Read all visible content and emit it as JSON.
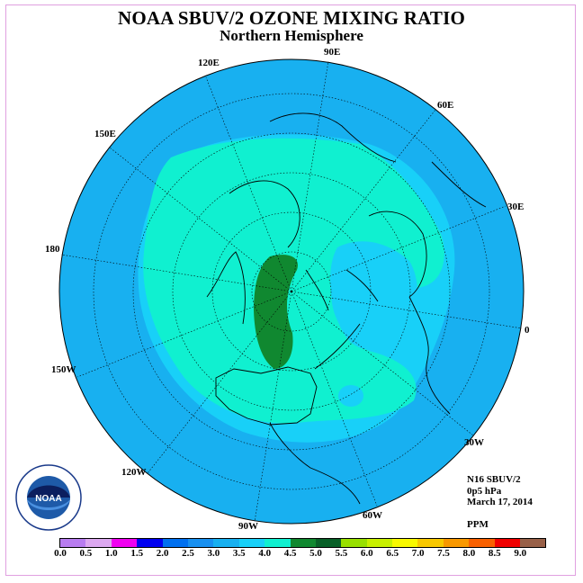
{
  "header": {
    "title": "NOAA SBUV/2 OZONE MIXING RATIO",
    "subtitle": "Northern Hemisphere"
  },
  "map": {
    "projection": "polar-stereographic-north",
    "longitude_labels": [
      "90E",
      "60E",
      "30E",
      "0",
      "30W",
      "60W",
      "90W",
      "120W",
      "150W",
      "180",
      "150E",
      "120E"
    ]
  },
  "info": {
    "instrument": "N16 SBUV/2",
    "pressure_level": "0p5 hPa",
    "date": "March 17, 2014",
    "units": "PPM"
  },
  "colorbar": {
    "colors": [
      "#b87cf0",
      "#dca8f0",
      "#f000f0",
      "#0000f0",
      "#0070f0",
      "#1890f0",
      "#18b0f0",
      "#18d0f8",
      "#10f0d0",
      "#108830",
      "#086028",
      "#98e000",
      "#c8f000",
      "#f8f800",
      "#f8c800",
      "#f89800",
      "#f86000",
      "#f00000",
      "#986048"
    ],
    "tick_labels": [
      "0.0",
      "0.5",
      "1.0",
      "1.5",
      "2.0",
      "2.5",
      "3.0",
      "3.5",
      "4.0",
      "4.5",
      "5.0",
      "5.5",
      "6.0",
      "6.5",
      "7.0",
      "7.5",
      "8.0",
      "8.5",
      "9.0"
    ]
  },
  "colors": {
    "ocean_background": "#18b0f0",
    "level_3_5": "#18d0f8",
    "level_4_0": "#10f0d0",
    "level_4_5": "#108830"
  },
  "logo": {
    "text": "NOAA"
  }
}
